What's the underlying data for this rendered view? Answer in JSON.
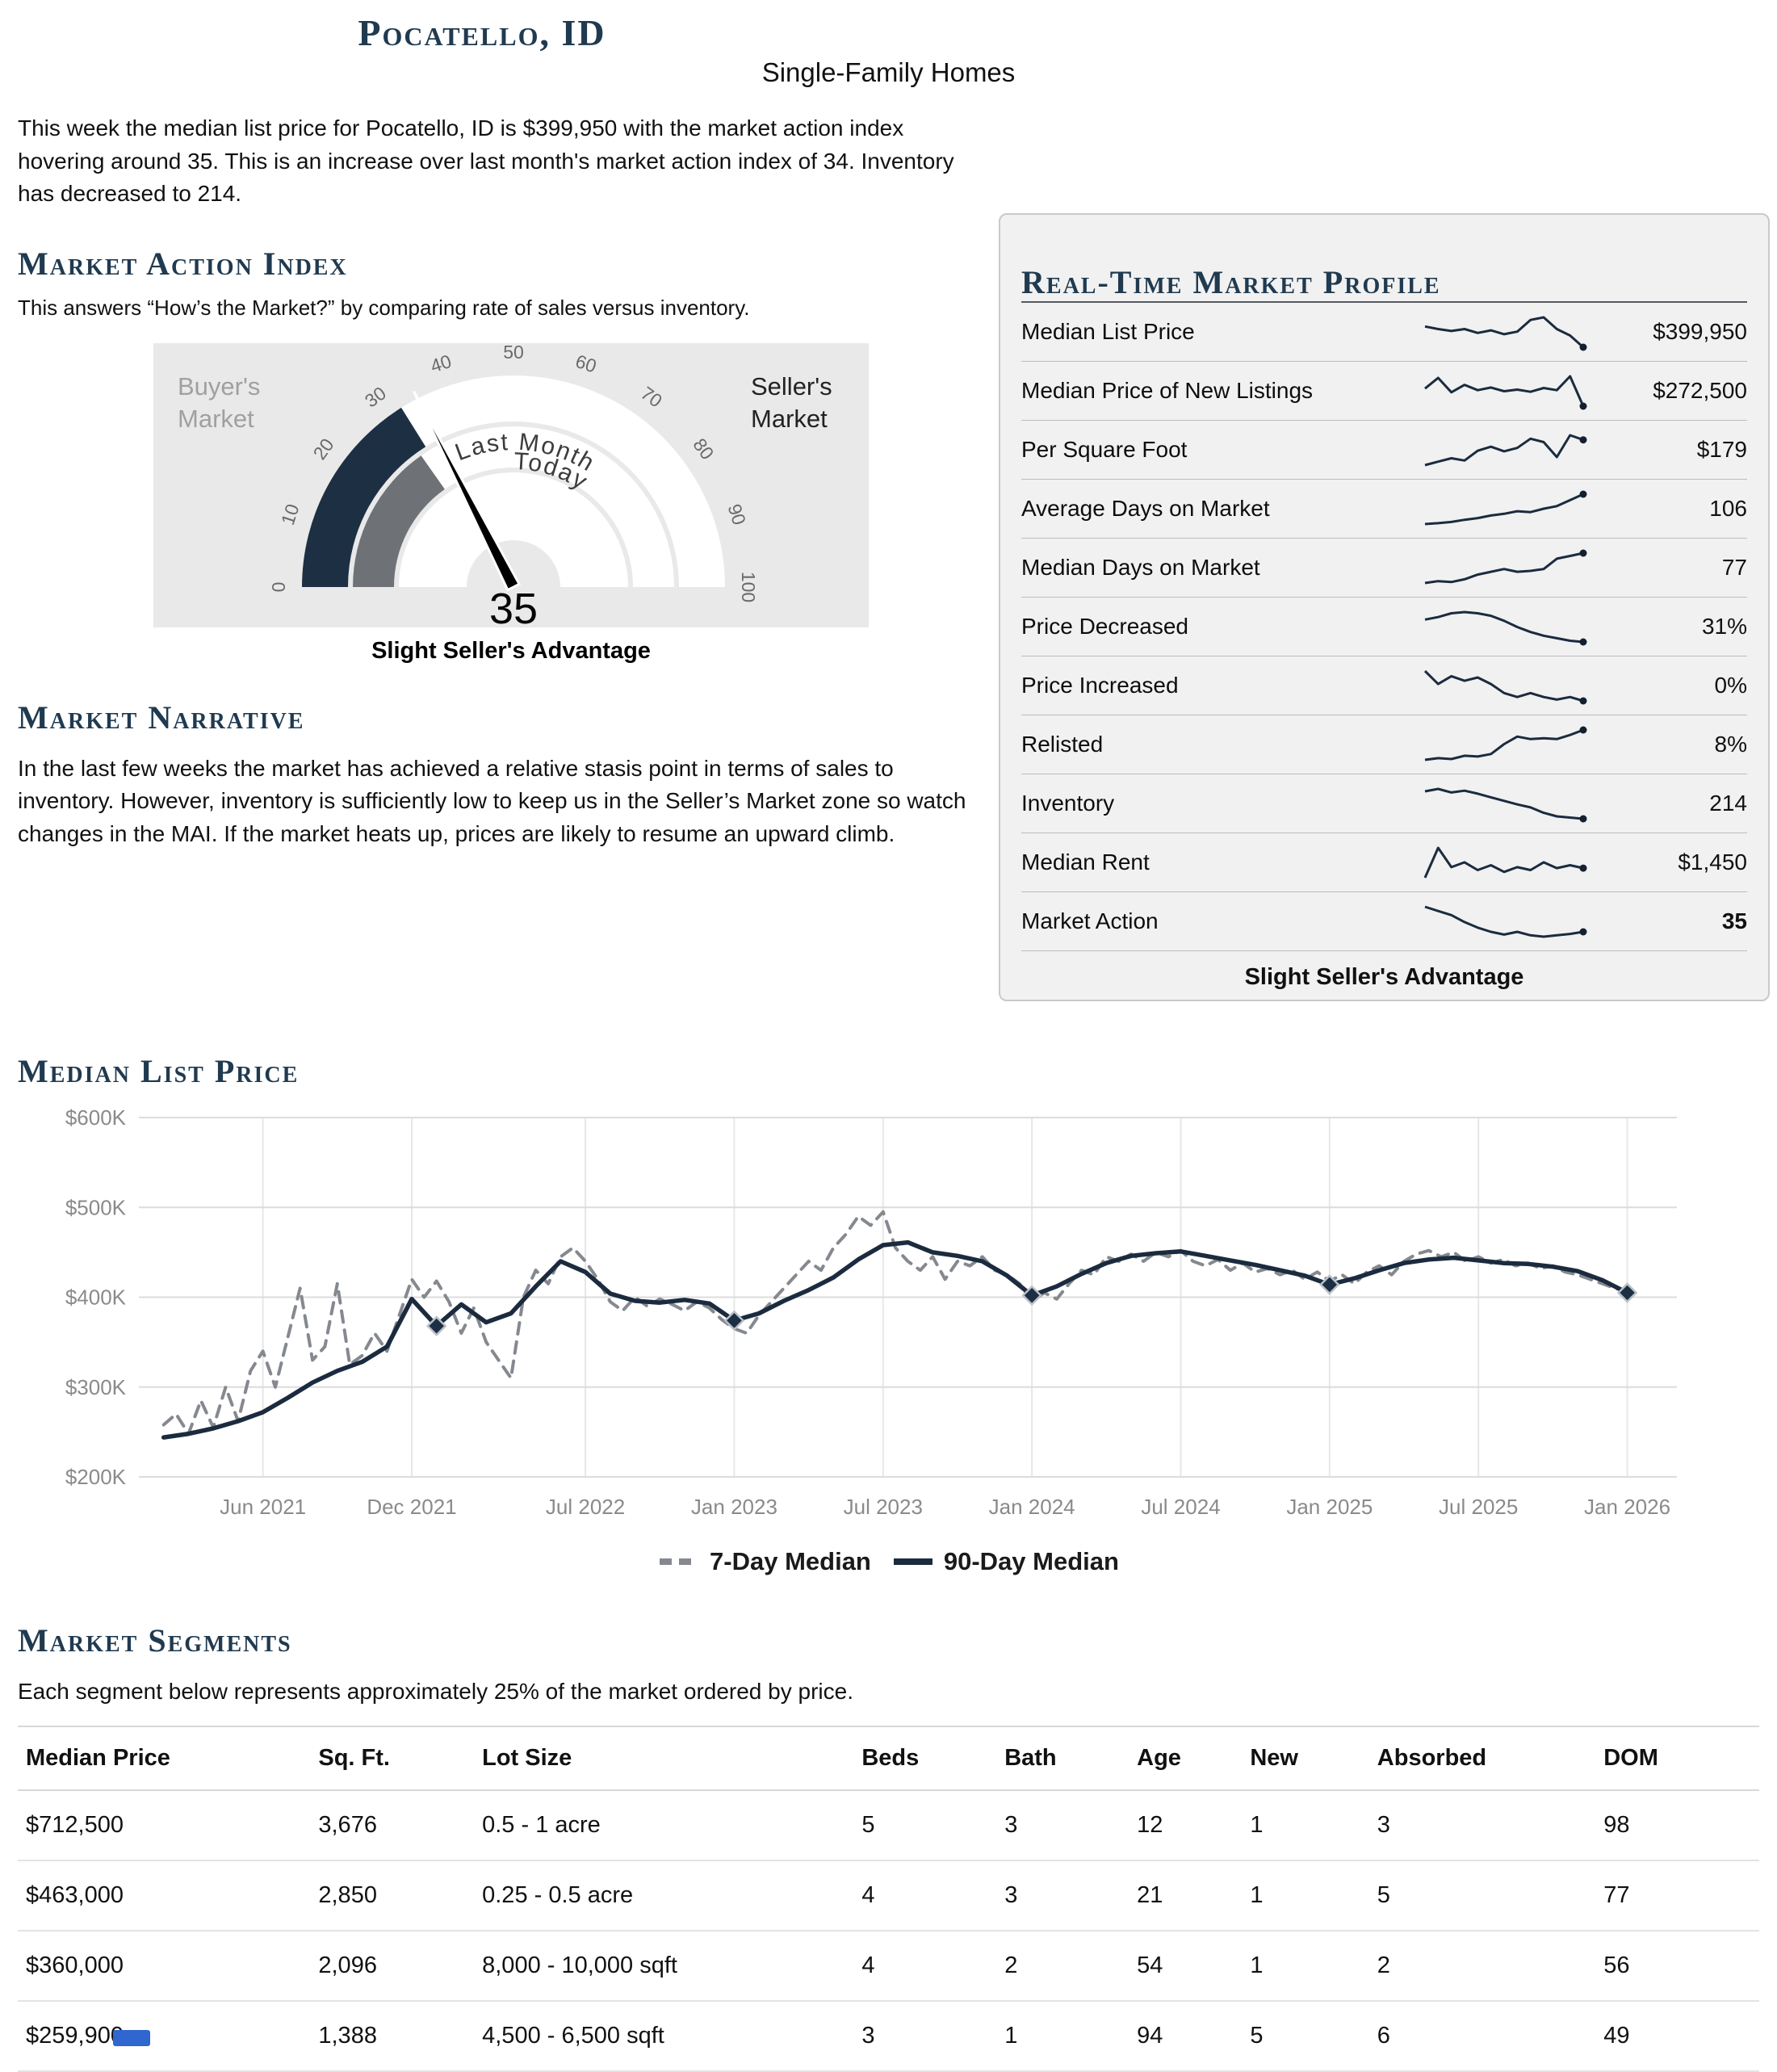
{
  "header": {
    "title": "Pocatello, ID",
    "subtitle": "Single-Family Homes"
  },
  "intro": "This week the median list price for Pocatello, ID is $399,950 with the market action index hovering around 35. This is an increase over last month's market action index of 34. Inventory has decreased to 214.",
  "sections": {
    "market_action": {
      "heading": "Market Action Index",
      "description": "This answers “How’s the Market?” by comparing rate of sales versus inventory."
    },
    "narrative": {
      "heading": "Market Narrative",
      "text": "In the last few weeks the market has achieved a relative stasis point in terms of sales to inventory. However, inventory is sufficiently low to keep us in the Seller’s Market zone so watch changes in the MAI. If the market heats up, prices are likely to resume an upward climb."
    },
    "segments": {
      "heading": "Market Segments",
      "description": "Each segment below represents approximately 25% of the market ordered by price."
    }
  },
  "profile": {
    "heading": "Real-Time Market Profile",
    "footer": "Slight Seller's Advantage",
    "rows": [
      {
        "label": "Median List Price",
        "value": "$399,950",
        "spark": [
          62,
          58,
          55,
          58,
          52,
          56,
          50,
          54,
          72,
          76,
          58,
          48,
          30
        ]
      },
      {
        "label": "Median Price of New Listings",
        "value": "$272,500",
        "spark": [
          55,
          75,
          48,
          62,
          52,
          57,
          50,
          53,
          49,
          56,
          52,
          78,
          22
        ]
      },
      {
        "label": "Per Square Foot",
        "value": "$179",
        "spark": [
          20,
          26,
          32,
          28,
          45,
          52,
          44,
          50,
          66,
          60,
          34,
          72,
          64
        ]
      },
      {
        "label": "Average Days on Market",
        "value": "106",
        "spark": [
          20,
          22,
          25,
          30,
          34,
          40,
          44,
          50,
          48,
          56,
          62,
          76,
          90
        ]
      },
      {
        "label": "Median Days on Market",
        "value": "77",
        "spark": [
          26,
          30,
          28,
          34,
          44,
          50,
          56,
          50,
          52,
          56,
          78,
          84,
          90
        ]
      },
      {
        "label": "Price Decreased",
        "value": "31%",
        "spark": [
          62,
          66,
          72,
          74,
          72,
          68,
          60,
          50,
          42,
          36,
          32,
          28,
          26
        ]
      },
      {
        "label": "Price Increased",
        "value": "0%",
        "spark": [
          70,
          50,
          62,
          55,
          60,
          50,
          36,
          30,
          36,
          30,
          26,
          30,
          24
        ]
      },
      {
        "label": "Relisted",
        "value": "8%",
        "spark": [
          20,
          24,
          22,
          30,
          28,
          34,
          58,
          76,
          70,
          72,
          70,
          80,
          92
        ]
      },
      {
        "label": "Inventory",
        "value": "214",
        "spark": [
          72,
          76,
          70,
          73,
          68,
          62,
          56,
          50,
          45,
          36,
          30,
          28,
          26
        ]
      },
      {
        "label": "Median Rent",
        "value": "$1,450",
        "spark": [
          30,
          92,
          52,
          62,
          46,
          56,
          42,
          52,
          46,
          62,
          50,
          56,
          50
        ]
      },
      {
        "label": "Market Action",
        "value": "35",
        "bold": true,
        "spark": [
          82,
          76,
          70,
          60,
          52,
          46,
          42,
          46,
          41,
          39,
          41,
          43,
          46
        ]
      }
    ]
  },
  "segments_table": {
    "columns": [
      "Median Price",
      "Sq. Ft.",
      "Lot Size",
      "Beds",
      "Bath",
      "Age",
      "New",
      "Absorbed",
      "DOM"
    ],
    "rows": [
      [
        "$712,500",
        "3,676",
        "0.5 - 1 acre",
        "5",
        "3",
        "12",
        "1",
        "3",
        "98"
      ],
      [
        "$463,000",
        "2,850",
        "0.25 - 0.5 acre",
        "4",
        "3",
        "21",
        "1",
        "5",
        "77"
      ],
      [
        "$360,000",
        "2,096",
        "8,000 - 10,000 sqft",
        "4",
        "2",
        "54",
        "1",
        "2",
        "56"
      ],
      [
        "$259,900",
        "1,388",
        "4,500 - 6,500 sqft",
        "3",
        "1",
        "94",
        "5",
        "6",
        "49"
      ]
    ]
  },
  "chart_data": [
    {
      "type": "gauge",
      "title": "Market Action Index",
      "value": 35,
      "value_display": "35",
      "last_month": 34,
      "min": 0,
      "max": 100,
      "ticks": [
        0,
        10,
        20,
        30,
        40,
        50,
        60,
        70,
        80,
        90,
        100
      ],
      "buyers_label": "Buyer's Market",
      "sellers_label": "Seller's Market",
      "arc_labels": [
        "Last Month",
        "Today"
      ],
      "caption": "Slight Seller's Advantage"
    },
    {
      "type": "line",
      "title": "Median List Price",
      "ylim": [
        200,
        600
      ],
      "y_unit": "$K",
      "yticks": [
        {
          "v": 200,
          "label": "$200K"
        },
        {
          "v": 300,
          "label": "$300K"
        },
        {
          "v": 400,
          "label": "$400K"
        },
        {
          "v": 500,
          "label": "$500K"
        },
        {
          "v": 600,
          "label": "$600K"
        }
      ],
      "x_unit": "months since Jan 2021",
      "x_domain": [
        0,
        62
      ],
      "xticks": [
        {
          "m": 5,
          "label": "Jun 2021"
        },
        {
          "m": 11,
          "label": "Dec 2021"
        },
        {
          "m": 18,
          "label": "Jul 2022"
        },
        {
          "m": 24,
          "label": "Jan 2023"
        },
        {
          "m": 30,
          "label": "Jul 2023"
        },
        {
          "m": 36,
          "label": "Jan 2024"
        },
        {
          "m": 42,
          "label": "Jul 2024"
        },
        {
          "m": 48,
          "label": "Jan 2025"
        },
        {
          "m": 54,
          "label": "Jul 2025"
        },
        {
          "m": 60,
          "label": "Jan 2026"
        }
      ],
      "grid": true,
      "legend_position": "bottom",
      "series": [
        {
          "name": "7-Day Median",
          "style": "dashed",
          "color": "#85898f",
          "x_start": 1,
          "x_step": 0.5,
          "values": [
            258,
            270,
            248,
            285,
            255,
            300,
            262,
            318,
            340,
            300,
            355,
            410,
            330,
            345,
            415,
            325,
            335,
            360,
            340,
            380,
            420,
            400,
            418,
            395,
            360,
            388,
            350,
            330,
            310,
            400,
            430,
            415,
            445,
            455,
            440,
            420,
            395,
            385,
            400,
            390,
            398,
            392,
            385,
            395,
            388,
            375,
            365,
            360,
            380,
            395,
            410,
            425,
            440,
            430,
            455,
            470,
            490,
            480,
            495,
            455,
            440,
            430,
            445,
            420,
            440,
            435,
            445,
            430,
            425,
            415,
            395,
            405,
            398,
            415,
            430,
            425,
            445,
            440,
            448,
            440,
            450,
            445,
            452,
            440,
            435,
            442,
            430,
            438,
            428,
            432,
            425,
            430,
            420,
            428,
            418,
            425,
            415,
            428,
            435,
            425,
            440,
            448,
            452,
            445,
            450,
            440,
            445,
            438,
            442,
            435,
            438,
            432,
            435,
            428,
            425,
            420,
            415,
            410,
            406
          ]
        },
        {
          "name": "90-Day Median",
          "style": "solid",
          "color": "#1b2b3f",
          "x_start": 1,
          "x_step": 1,
          "values": [
            244,
            248,
            254,
            262,
            272,
            288,
            305,
            318,
            328,
            345,
            398,
            368,
            392,
            372,
            382,
            412,
            440,
            428,
            404,
            396,
            394,
            397,
            393,
            374,
            382,
            396,
            408,
            422,
            442,
            458,
            461,
            450,
            446,
            440,
            424,
            402,
            412,
            426,
            438,
            446,
            449,
            451,
            446,
            441,
            436,
            430,
            424,
            414,
            421,
            430,
            438,
            442,
            444,
            441,
            438,
            437,
            434,
            429,
            419,
            405
          ]
        }
      ],
      "markers": [
        {
          "x": 12,
          "y": 368
        },
        {
          "x": 24,
          "y": 374
        },
        {
          "x": 36,
          "y": 402
        },
        {
          "x": 48,
          "y": 414
        },
        {
          "x": 60,
          "y": 405
        }
      ]
    }
  ]
}
